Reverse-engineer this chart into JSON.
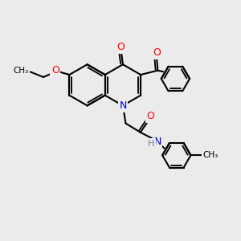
{
  "background_color": "#ebebeb",
  "bond_color": "#000000",
  "bond_width": 1.5,
  "atom_colors": {
    "O": "#ff0000",
    "N": "#0000cd",
    "H": "#708090"
  },
  "font_size_atom": 9,
  "font_size_label": 7.5
}
